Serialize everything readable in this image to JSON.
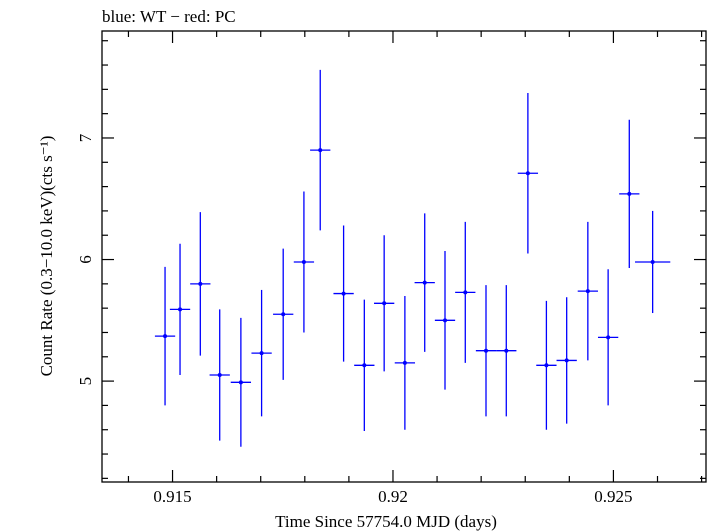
{
  "chart_data": {
    "type": "scatter",
    "title": "blue: WT − red: PC",
    "xlabel": "Time Since 57754.0 MJD (days)",
    "ylabel": "Count Rate (0.3−10.0 keV)(cts s⁻¹)",
    "xlim": [
      0.9134,
      0.9271
    ],
    "ylim": [
      4.17,
      7.88
    ],
    "x_ticks": [
      0.915,
      0.92,
      0.925
    ],
    "x_tick_labels": [
      "0.915",
      "0.92",
      "0.925"
    ],
    "y_ticks": [
      5,
      6,
      7
    ],
    "y_tick_labels": [
      "5",
      "6",
      "7"
    ],
    "grid": false,
    "series": [
      {
        "color": "#0000ff",
        "points": [
          {
            "x": 0.91483,
            "xerr": 0.00023,
            "y": 5.37,
            "yerr": 0.57
          },
          {
            "x": 0.91517,
            "xerr": 0.00023,
            "y": 5.59,
            "yerr": 0.54
          },
          {
            "x": 0.91563,
            "xerr": 0.00023,
            "y": 5.8,
            "yerr": 0.59
          },
          {
            "x": 0.91607,
            "xerr": 0.00023,
            "y": 5.05,
            "yerr": 0.54
          },
          {
            "x": 0.91655,
            "xerr": 0.00023,
            "y": 4.99,
            "yerr": 0.53
          },
          {
            "x": 0.91702,
            "xerr": 0.00023,
            "y": 5.23,
            "yerr": 0.52
          },
          {
            "x": 0.91751,
            "xerr": 0.00023,
            "y": 5.55,
            "yerr": 0.54
          },
          {
            "x": 0.91798,
            "xerr": 0.00023,
            "y": 5.98,
            "yerr": 0.58
          },
          {
            "x": 0.91835,
            "xerr": 0.00023,
            "y": 6.9,
            "yerr": 0.66
          },
          {
            "x": 0.91888,
            "xerr": 0.00023,
            "y": 5.72,
            "yerr": 0.56
          },
          {
            "x": 0.91935,
            "xerr": 0.00023,
            "y": 5.13,
            "yerr": 0.54
          },
          {
            "x": 0.9198,
            "xerr": 0.00023,
            "y": 5.64,
            "yerr": 0.56
          },
          {
            "x": 0.92027,
            "xerr": 0.00023,
            "y": 5.15,
            "yerr": 0.55
          },
          {
            "x": 0.92072,
            "xerr": 0.00023,
            "y": 5.81,
            "yerr": 0.57
          },
          {
            "x": 0.92118,
            "xerr": 0.00023,
            "y": 5.5,
            "yerr": 0.57
          },
          {
            "x": 0.92164,
            "xerr": 0.00023,
            "y": 5.73,
            "yerr": 0.58
          },
          {
            "x": 0.92211,
            "xerr": 0.00023,
            "y": 5.25,
            "yerr": 0.54
          },
          {
            "x": 0.92257,
            "xerr": 0.00023,
            "y": 5.25,
            "yerr": 0.54
          },
          {
            "x": 0.92306,
            "xerr": 0.00023,
            "y": 6.71,
            "yerr": 0.66
          },
          {
            "x": 0.92348,
            "xerr": 0.00023,
            "y": 5.13,
            "yerr": 0.53
          },
          {
            "x": 0.92394,
            "xerr": 0.00023,
            "y": 5.17,
            "yerr": 0.52
          },
          {
            "x": 0.92442,
            "xerr": 0.00023,
            "y": 5.74,
            "yerr": 0.57
          },
          {
            "x": 0.92488,
            "xerr": 0.00023,
            "y": 5.36,
            "yerr": 0.56
          },
          {
            "x": 0.92536,
            "xerr": 0.00023,
            "y": 6.54,
            "yerr": 0.61
          },
          {
            "x": 0.92589,
            "xerr": 0.0004,
            "y": 5.98,
            "yerr": 0.42
          }
        ]
      }
    ]
  }
}
